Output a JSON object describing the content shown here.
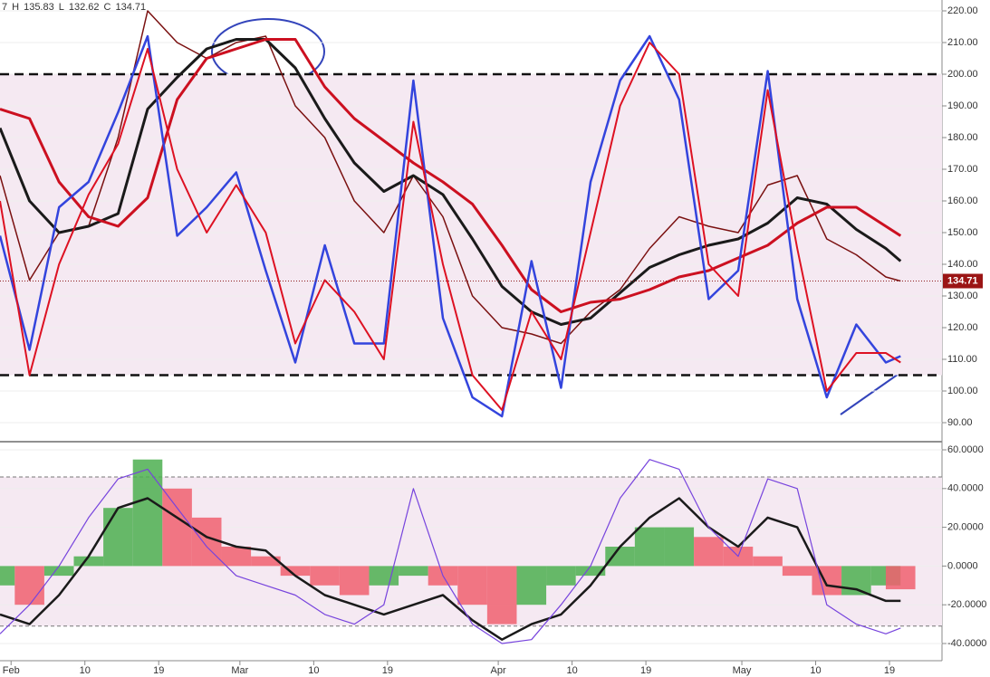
{
  "header": {
    "items": [
      "7",
      "H",
      "135.83",
      "L",
      "132.62",
      "C",
      "134.71"
    ]
  },
  "chart_data": [
    {
      "type": "line",
      "xlim": [
        0,
        127
      ],
      "ylim": [
        88,
        222
      ],
      "yticks": [
        {
          "value": 90,
          "label": "90.00"
        },
        {
          "value": 100,
          "label": "100.00"
        },
        {
          "value": 110,
          "label": "110.00"
        },
        {
          "value": 120,
          "label": "120.00"
        },
        {
          "value": 130,
          "label": "130.00"
        },
        {
          "value": 140,
          "label": "140.00"
        },
        {
          "value": 150,
          "label": "150.00"
        },
        {
          "value": 160,
          "label": "160.00"
        },
        {
          "value": 170,
          "label": "170.00"
        },
        {
          "value": 180,
          "label": "180.00"
        },
        {
          "value": 190,
          "label": "190.00"
        },
        {
          "value": 200,
          "label": "200.00"
        },
        {
          "value": 210,
          "label": "210.00"
        },
        {
          "value": 220,
          "label": "220.00"
        }
      ],
      "hlines": [
        200,
        105
      ],
      "last_value": 134.71,
      "last_value_label": "134.71",
      "x": [
        0,
        4,
        8,
        12,
        16,
        20,
        24,
        28,
        32,
        36,
        40,
        44,
        48,
        52,
        56,
        60,
        64,
        68,
        72,
        76,
        80,
        84,
        88,
        92,
        96,
        100,
        104,
        108,
        112,
        116,
        120,
        122
      ],
      "series": [
        {
          "color": "#7a1010",
          "width": 1.5,
          "values": [
            168,
            135,
            150,
            152,
            180,
            220,
            210,
            205,
            210,
            212,
            190,
            180,
            160,
            150,
            168,
            155,
            130,
            120,
            118,
            115,
            125,
            132,
            145,
            155,
            152,
            150,
            165,
            168,
            148,
            143,
            136,
            134.71
          ]
        },
        {
          "color": "#1a1a1a",
          "width": 3,
          "values": [
            183,
            160,
            150,
            152,
            156,
            189,
            199,
            208,
            211,
            211,
            202,
            186,
            172,
            163,
            168,
            162,
            148,
            133,
            125,
            121,
            123,
            131,
            139,
            143,
            146,
            148,
            153,
            161,
            159,
            151,
            145,
            141
          ]
        },
        {
          "color": "#cc1020",
          "width": 3,
          "values": [
            189,
            186,
            166,
            155,
            152,
            161,
            192,
            205,
            208,
            211,
            211,
            196,
            186,
            179,
            172,
            166,
            159,
            146,
            132,
            125,
            128,
            129,
            132,
            136,
            138,
            142,
            146,
            153,
            158,
            158,
            152,
            149
          ]
        },
        {
          "color": "#3344dd",
          "width": 2.5,
          "values": [
            149,
            113,
            158,
            166,
            188,
            212,
            149,
            158,
            169,
            138,
            109,
            146,
            115,
            115,
            198,
            123,
            98,
            92,
            141,
            101,
            166,
            198,
            212,
            192,
            129,
            138,
            201,
            129,
            98,
            121,
            109,
            111
          ]
        },
        {
          "color": "#dd1122",
          "width": 2,
          "values": [
            160,
            105,
            140,
            162,
            178,
            208,
            170,
            150,
            165,
            150,
            115,
            135,
            125,
            110,
            185,
            140,
            105,
            94,
            125,
            110,
            150,
            190,
            210,
            200,
            140,
            130,
            195,
            145,
            100,
            112,
            112,
            109
          ]
        }
      ]
    },
    {
      "type": "line",
      "xlim": [
        0,
        127
      ],
      "ylim": [
        -46,
        64
      ],
      "yticks": [
        {
          "value": -40,
          "label": "-40.0000"
        },
        {
          "value": -20,
          "label": "-20.0000"
        },
        {
          "value": 0,
          "label": "0.0000"
        },
        {
          "value": 20,
          "label": "20.0000"
        },
        {
          "value": 40,
          "label": "40.0000"
        },
        {
          "value": 60,
          "label": "60.0000"
        }
      ],
      "hlines": [
        46,
        -31
      ],
      "xticks": [
        {
          "value": 1.5,
          "label": "Feb"
        },
        {
          "value": 11.5,
          "label": "10"
        },
        {
          "value": 21.5,
          "label": "19"
        },
        {
          "value": 32.5,
          "label": "Mar"
        },
        {
          "value": 42.5,
          "label": "10"
        },
        {
          "value": 52.5,
          "label": "19"
        },
        {
          "value": 67.5,
          "label": "Apr"
        },
        {
          "value": 77.5,
          "label": "10"
        },
        {
          "value": 87.5,
          "label": "19"
        },
        {
          "value": 100.5,
          "label": "May"
        },
        {
          "value": 110.5,
          "label": "10"
        },
        {
          "value": 120.5,
          "label": "19"
        }
      ],
      "x": [
        0,
        4,
        8,
        12,
        16,
        20,
        24,
        28,
        32,
        36,
        40,
        44,
        48,
        52,
        56,
        60,
        64,
        68,
        72,
        76,
        80,
        84,
        88,
        92,
        96,
        100,
        104,
        108,
        112,
        116,
        120,
        122
      ],
      "histogram": {
        "up_color": "#4caf50",
        "down_color": "#f06070",
        "values": [
          -10,
          -20,
          -5,
          5,
          30,
          55,
          40,
          25,
          10,
          5,
          -5,
          -10,
          -15,
          -10,
          -5,
          -10,
          -20,
          -30,
          -20,
          -10,
          -5,
          10,
          20,
          20,
          15,
          10,
          5,
          -5,
          -15,
          -15,
          -10,
          -12
        ]
      },
      "series": [
        {
          "color": "#1a1a1a",
          "width": 2.5,
          "values": [
            -25,
            -30,
            -15,
            5,
            30,
            35,
            25,
            15,
            10,
            8,
            -5,
            -15,
            -20,
            -25,
            -20,
            -15,
            -28,
            -38,
            -30,
            -25,
            -10,
            10,
            25,
            35,
            20,
            10,
            25,
            20,
            -10,
            -12,
            -18,
            -18
          ]
        },
        {
          "color": "#7744dd",
          "width": 1.2,
          "values": [
            -35,
            -20,
            0,
            25,
            45,
            50,
            30,
            10,
            -5,
            -10,
            -15,
            -25,
            -30,
            -20,
            40,
            -5,
            -30,
            -40,
            -38,
            -20,
            0,
            35,
            55,
            50,
            20,
            5,
            45,
            40,
            -20,
            -30,
            -35,
            -32
          ]
        }
      ]
    }
  ]
}
